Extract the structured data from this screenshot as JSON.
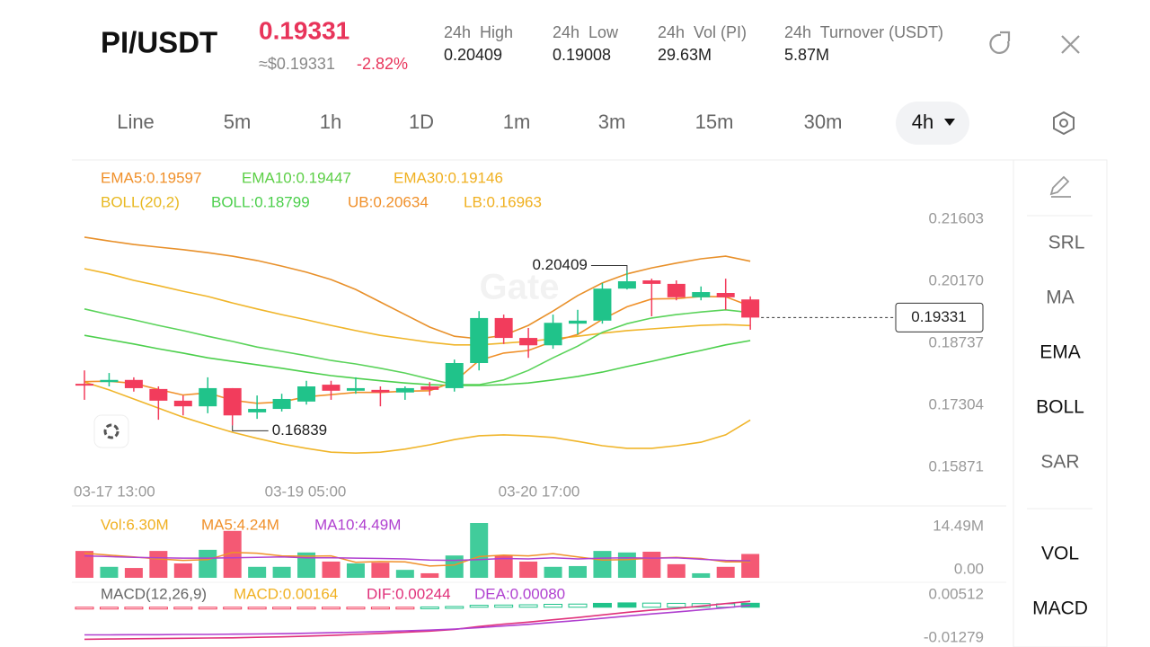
{
  "header": {
    "pair": "PI/USDT",
    "price": "0.19331",
    "usd_price": "≈$0.19331",
    "change": "-2.82%",
    "stats": [
      {
        "label": "24h  High",
        "value": "0.20409"
      },
      {
        "label": "24h  Low",
        "value": "0.19008"
      },
      {
        "label": "24h  Vol (PI)",
        "value": "29.63M"
      },
      {
        "label": "24h  Turnover (USDT)",
        "value": "5.87M"
      }
    ]
  },
  "tabs": [
    "Line",
    "5m",
    "1h",
    "1D",
    "1m",
    "3m",
    "15m",
    "30m",
    "4h"
  ],
  "selected_tab": "4h",
  "side_tools": [
    "SRL",
    "MA",
    "EMA",
    "BOLL",
    "SAR"
  ],
  "side_panels": [
    "VOL",
    "MACD"
  ],
  "kline": {
    "type": "candlestick",
    "watermark": "Gate",
    "up_color": "#20c38a",
    "down_color": "#f23c5c",
    "indicator_rows": [
      [
        {
          "text": "EMA5:0.19597",
          "color": "#f0902a"
        },
        {
          "text": "EMA10:0.19447",
          "color": "#5ccf46"
        },
        {
          "text": "EMA30:0.19146",
          "color": "#f0b020"
        }
      ],
      [
        {
          "text": "BOLL(20,2)",
          "color": "#e8b820"
        },
        {
          "text": "BOLL:0.18799",
          "color": "#4ccf4c"
        },
        {
          "text": "UB:0.20634",
          "color": "#f0902a"
        },
        {
          "text": "LB:0.16963",
          "color": "#f0b020"
        }
      ]
    ],
    "x_labels": [
      "03-17 13:00",
      "03-19 05:00",
      "03-20 17:00"
    ],
    "ylim": [
      0.15871,
      0.21603
    ],
    "yticks": [
      0.21603,
      {
        "value": 0.2017,
        "label": "0.20170"
      },
      0.18737,
      0.17304,
      0.15871
    ],
    "high_label": "0.20409",
    "low_label": "0.16839",
    "last_label": "0.19331",
    "candles": {
      "open": [
        0.178,
        0.1784,
        0.1789,
        0.1768,
        0.1741,
        0.1728,
        0.177,
        0.1714,
        0.1722,
        0.1739,
        0.1778,
        0.1764,
        0.1766,
        0.176,
        0.1774,
        0.177,
        0.1828,
        0.1932,
        0.1886,
        0.1869,
        0.1919,
        0.1926,
        0.2,
        0.2019,
        0.2011,
        0.198,
        0.199,
        0.1975
      ],
      "high": [
        0.1811,
        0.1805,
        0.1795,
        0.1774,
        0.1753,
        0.1795,
        0.177,
        0.1753,
        0.1757,
        0.1787,
        0.1787,
        0.1795,
        0.1774,
        0.1774,
        0.1784,
        0.1836,
        0.1948,
        0.194,
        0.1909,
        0.194,
        0.1951,
        0.2013,
        0.20409,
        0.2023,
        0.2019,
        0.2005,
        0.2023,
        0.1982
      ],
      "low": [
        0.1743,
        0.1774,
        0.1762,
        0.1697,
        0.1707,
        0.1712,
        0.16839,
        0.1699,
        0.1716,
        0.1732,
        0.1743,
        0.1757,
        0.1728,
        0.1743,
        0.1753,
        0.1762,
        0.1811,
        0.1872,
        0.184,
        0.1861,
        0.1894,
        0.1919,
        0.1998,
        0.1936,
        0.1973,
        0.1973,
        0.1951,
        0.1905
      ],
      "close": [
        0.1776,
        0.1789,
        0.177,
        0.1741,
        0.1728,
        0.177,
        0.1707,
        0.1722,
        0.1745,
        0.1774,
        0.1764,
        0.177,
        0.176,
        0.177,
        0.1766,
        0.1828,
        0.1932,
        0.1886,
        0.1869,
        0.1921,
        0.1926,
        0.2,
        0.2017,
        0.2011,
        0.198,
        0.1992,
        0.198,
        0.19331
      ]
    },
    "lines": [
      {
        "color": "#e8902a",
        "values": [
          0.2119,
          0.211,
          0.2102,
          0.2096,
          0.209,
          0.2083,
          0.2075,
          0.2065,
          0.2052,
          0.2038,
          0.2021,
          0.1998,
          0.1969,
          0.194,
          0.1911,
          0.189,
          0.1884,
          0.1892,
          0.1915,
          0.1948,
          0.1984,
          0.2013,
          0.2034,
          0.2048,
          0.2059,
          0.2069,
          0.2075,
          0.20634
        ]
      },
      {
        "color": "#f0b52a",
        "values": [
          0.2046,
          0.2034,
          0.2019,
          0.2007,
          0.1994,
          0.1982,
          0.1967,
          0.1953,
          0.194,
          0.1928,
          0.1915,
          0.1903,
          0.1892,
          0.1884,
          0.1876,
          0.187,
          0.187,
          0.1874,
          0.1878,
          0.1884,
          0.189,
          0.1897,
          0.1903,
          0.1907,
          0.1911,
          0.1915,
          0.1917,
          0.19146
        ]
      },
      {
        "color": "#5ad35a",
        "values": [
          0.1953,
          0.194,
          0.1928,
          0.1915,
          0.1903,
          0.189,
          0.1878,
          0.1865,
          0.1855,
          0.1845,
          0.1834,
          0.1826,
          0.1816,
          0.1805,
          0.1791,
          0.1778,
          0.1778,
          0.1789,
          0.1811,
          0.184,
          0.1867,
          0.1899,
          0.1919,
          0.1932,
          0.194,
          0.1946,
          0.1951,
          0.19447
        ]
      },
      {
        "color": "#4ccf4c",
        "values": [
          0.1892,
          0.1882,
          0.1872,
          0.1861,
          0.1851,
          0.184,
          0.1832,
          0.1824,
          0.1816,
          0.1807,
          0.1799,
          0.1793,
          0.1787,
          0.1782,
          0.1778,
          0.1776,
          0.1776,
          0.1778,
          0.1782,
          0.1789,
          0.1797,
          0.1807,
          0.182,
          0.1832,
          0.1845,
          0.1857,
          0.187,
          0.18799
        ]
      },
      {
        "color": "#f0b52a",
        "values": [
          0.1784,
          0.1766,
          0.1745,
          0.1724,
          0.1703,
          0.1685,
          0.1668,
          0.1654,
          0.1641,
          0.1631,
          0.1622,
          0.162,
          0.1622,
          0.1629,
          0.1639,
          0.1651,
          0.166,
          0.1662,
          0.166,
          0.1656,
          0.1647,
          0.1637,
          0.1631,
          0.1631,
          0.1637,
          0.1645,
          0.1662,
          0.16963
        ]
      },
      {
        "color": "#f0902a",
        "values": [
          0.1785,
          0.1786,
          0.1781,
          0.1767,
          0.1754,
          0.1759,
          0.1742,
          0.1735,
          0.1738,
          0.175,
          0.1755,
          0.176,
          0.176,
          0.1763,
          0.1764,
          0.1785,
          0.1834,
          0.1851,
          0.1857,
          0.1878,
          0.1894,
          0.1929,
          0.1958,
          0.1976,
          0.1977,
          0.1982,
          0.1981,
          0.19597
        ]
      }
    ]
  },
  "volume": {
    "labels": [
      {
        "text": "Vol:6.30M",
        "color": "#f0b020"
      },
      {
        "text": "MA5:4.24M",
        "color": "#f0902a"
      },
      {
        "text": "MA10:4.49M",
        "color": "#b040d0"
      }
    ],
    "ylim": [
      0,
      14.49
    ],
    "yticks": [
      {
        "value": 14.49,
        "label": "14.49M"
      },
      {
        "value": 0,
        "label": "0.00"
      }
    ],
    "values": [
      7.1,
      2.9,
      2.6,
      7.1,
      3.8,
      7.4,
      12.4,
      2.9,
      2.9,
      6.7,
      4.3,
      3.8,
      4.0,
      2.1,
      1.2,
      5.9,
      14.49,
      5.9,
      4.3,
      2.9,
      3.1,
      7.1,
      6.7,
      6.9,
      3.6,
      1.2,
      2.9,
      6.3
    ],
    "ma5": [
      6.5,
      6.0,
      5.5,
      5.0,
      4.6,
      4.8,
      6.7,
      6.5,
      5.8,
      5.7,
      5.8,
      4.1,
      4.3,
      4.2,
      3.1,
      3.4,
      5.6,
      6.0,
      5.8,
      6.4,
      5.5,
      4.7,
      4.8,
      5.2,
      5.4,
      5.1,
      4.2,
      4.24
    ],
    "ma10": [
      5.8,
      5.6,
      5.4,
      5.3,
      5.2,
      5.2,
      5.3,
      5.4,
      5.5,
      5.3,
      5.3,
      5.2,
      5.1,
      5.0,
      4.7,
      4.6,
      4.8,
      5.1,
      5.0,
      5.3,
      5.0,
      5.2,
      5.3,
      5.2,
      5.3,
      4.9,
      4.6,
      4.49
    ],
    "ma5_color": "#f0902a",
    "ma10_color": "#b040d0"
  },
  "macd": {
    "labels": [
      {
        "text": "MACD(12,26,9)",
        "color": "#666666"
      },
      {
        "text": "MACD:0.00164",
        "color": "#f0b020"
      },
      {
        "text": "DIF:0.00244",
        "color": "#e0307a"
      },
      {
        "text": "DEA:0.00080",
        "color": "#b040d0"
      }
    ],
    "ylim": [
      -0.01279,
      0.00512
    ],
    "yticks": [
      0.00512,
      -0.01279
    ],
    "hist": [
      -0.0004,
      -0.0005,
      -0.0005,
      -0.0006,
      -0.0006,
      -0.0005,
      -0.0006,
      -0.0004,
      -0.0003,
      -0.0002,
      -0.0001,
      -0.0001,
      -0.0001,
      -0.0001,
      0.0001,
      0.0003,
      0.0008,
      0.0009,
      0.001,
      0.0012,
      0.0013,
      0.0016,
      0.0018,
      0.0017,
      0.0016,
      0.0015,
      0.0014,
      0.00164
    ],
    "dif": [
      -0.0133,
      -0.0132,
      -0.0131,
      -0.013,
      -0.0129,
      -0.0128,
      -0.0127,
      -0.0125,
      -0.0123,
      -0.012,
      -0.0117,
      -0.0113,
      -0.0109,
      -0.0104,
      -0.0099,
      -0.0092,
      -0.008,
      -0.007,
      -0.0062,
      -0.0052,
      -0.0043,
      -0.0032,
      -0.0021,
      -0.0012,
      -0.0005,
      0.0005,
      0.0015,
      0.00244
    ],
    "dea": [
      -0.0115,
      -0.0115,
      -0.0114,
      -0.0114,
      -0.0113,
      -0.0113,
      -0.0112,
      -0.0111,
      -0.011,
      -0.0108,
      -0.0106,
      -0.0104,
      -0.0101,
      -0.0098,
      -0.0095,
      -0.0091,
      -0.0085,
      -0.0078,
      -0.0071,
      -0.0063,
      -0.0055,
      -0.0046,
      -0.0037,
      -0.0028,
      -0.002,
      -0.0011,
      -0.0002,
      0.0008
    ],
    "dif_color": "#e0307a",
    "dea_color": "#b040d0"
  }
}
